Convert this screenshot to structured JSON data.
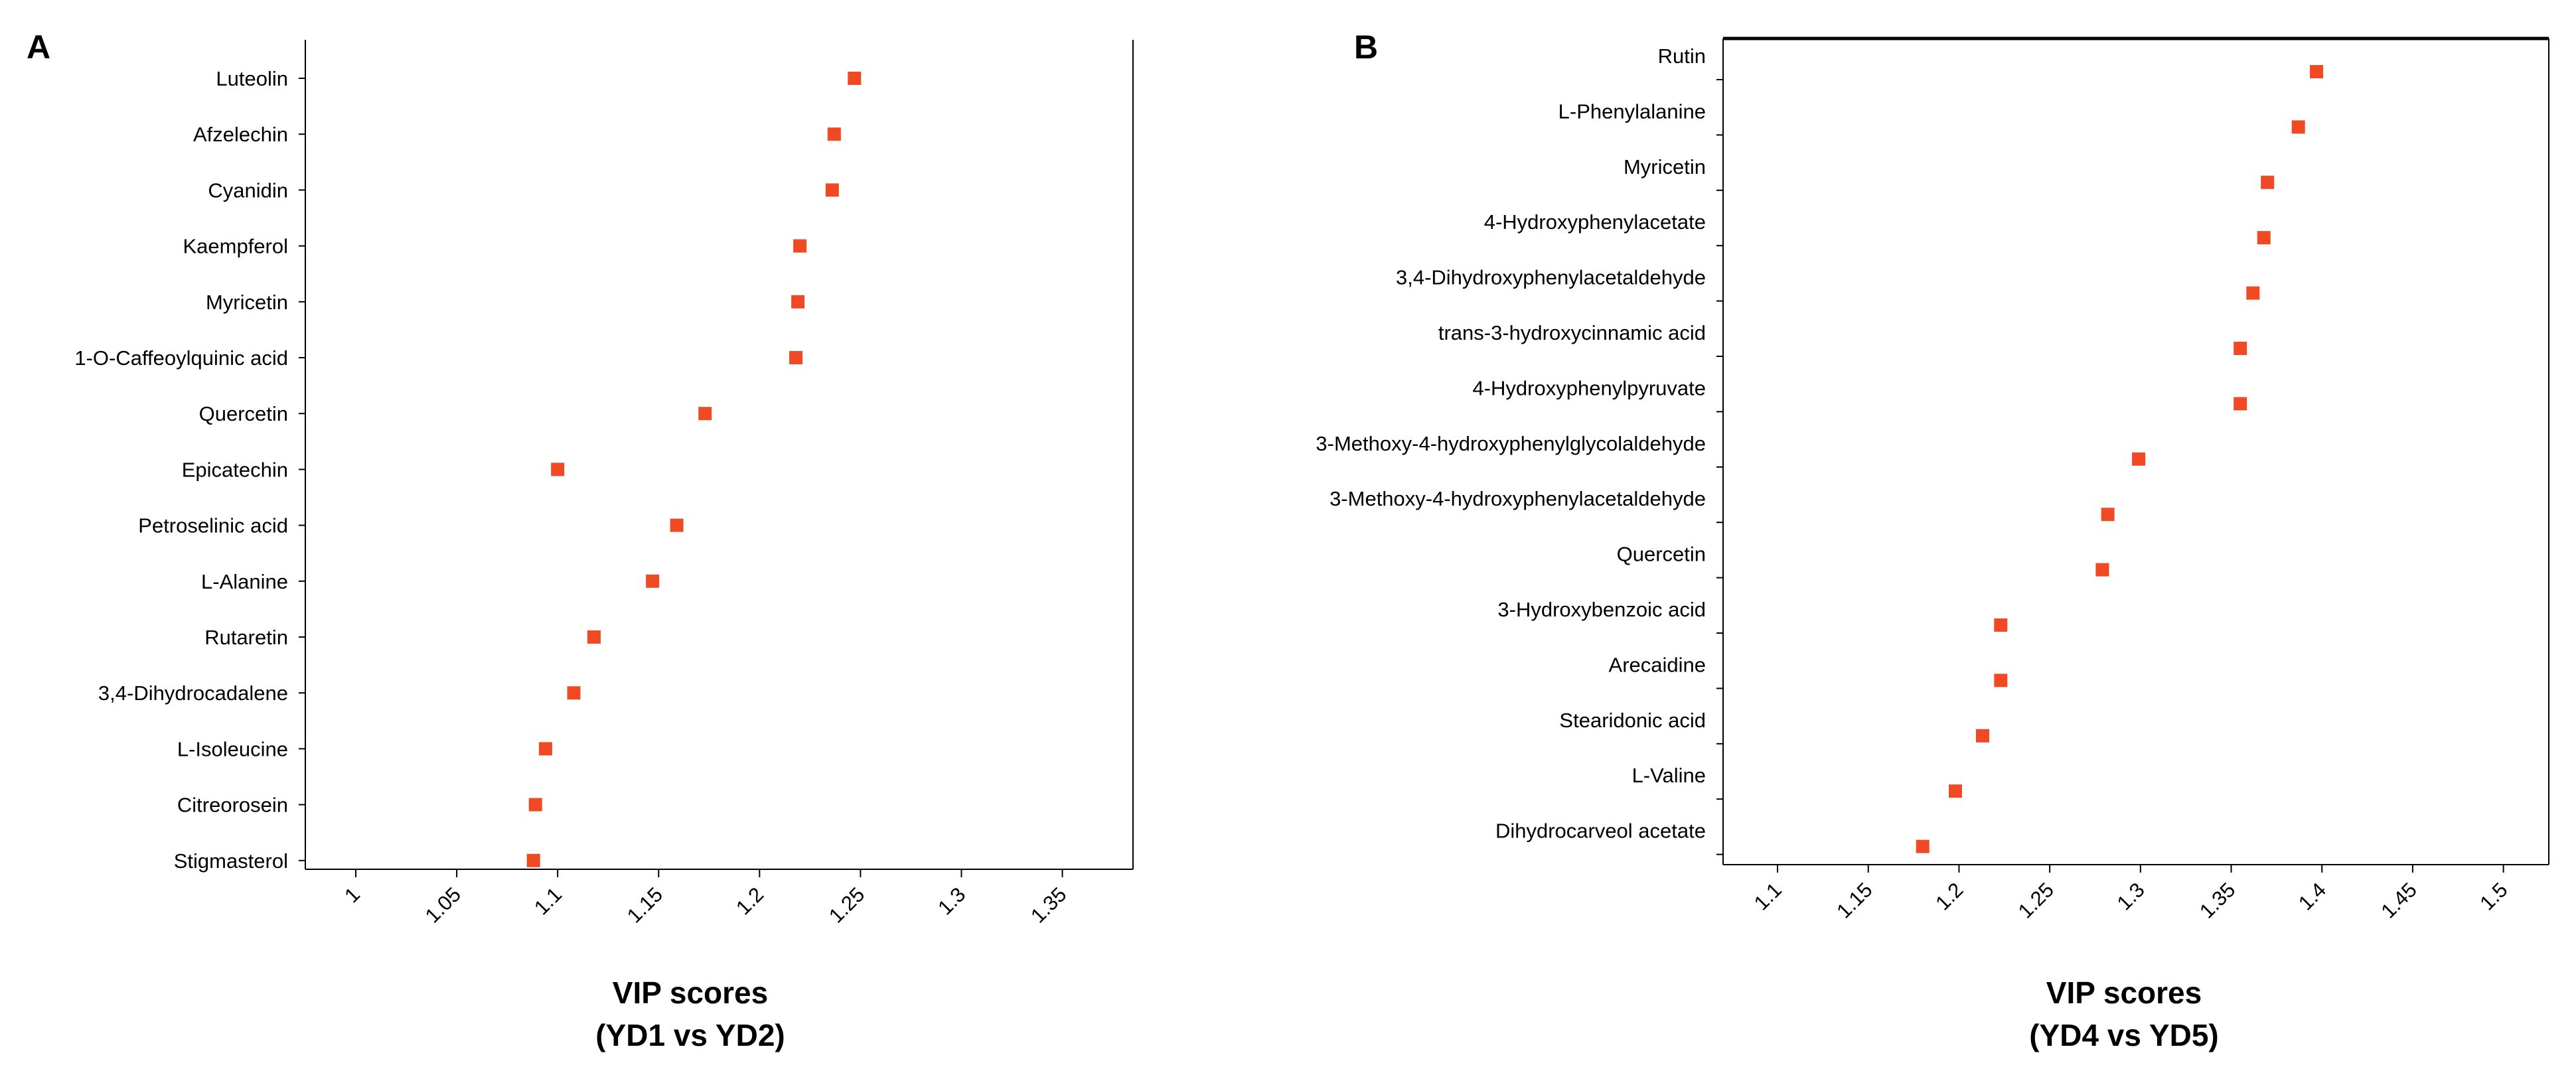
{
  "chart_data": [
    {
      "type": "scatter",
      "panel": "A",
      "xlabel": "VIP scores",
      "xlabel_sub": "(YD1 vs YD2)",
      "xlim": [
        0.975,
        1.385
      ],
      "xticks": [
        1,
        1.05,
        1.1,
        1.15,
        1.2,
        1.25,
        1.3,
        1.35
      ],
      "xtick_labels": [
        "1",
        "1.05",
        "1.1",
        "1.15",
        "1.2",
        "1.25",
        "1.3",
        "1.35"
      ],
      "marker_color": "#f04a24",
      "categories": [
        "Luteolin",
        "Afzelechin",
        "Cyanidin",
        "Kaempferol",
        "Myricetin",
        "1-O-Caffeoylquinic acid",
        "Quercetin",
        "Epicatechin",
        "Petroselinic acid",
        "L-Alanine",
        "Rutaretin",
        "3,4-Dihydrocadalene",
        "L-Isoleucine",
        "Citreorosein",
        "Stigmasterol"
      ],
      "values": [
        1.247,
        1.237,
        1.236,
        1.22,
        1.219,
        1.218,
        1.173,
        1.1,
        1.159,
        1.147,
        1.118,
        1.108,
        1.094,
        1.089,
        1.088
      ]
    },
    {
      "type": "scatter",
      "panel": "B",
      "xlabel": "VIP scores",
      "xlabel_sub": "(YD4 vs YD5)",
      "xlim": [
        1.07,
        1.525
      ],
      "xticks": [
        1.1,
        1.15,
        1.2,
        1.25,
        1.3,
        1.35,
        1.4,
        1.45,
        1.5
      ],
      "xtick_labels": [
        "1.1",
        "1.15",
        "1.2",
        "1.25",
        "1.3",
        "1.35",
        "1.4",
        "1.45",
        "1.5"
      ],
      "marker_color": "#f04a24",
      "categories": [
        "Rutin",
        "L-Phenylalanine",
        "Myricetin",
        "4-Hydroxyphenylacetate",
        "3,4-Dihydroxyphenylacetaldehyde",
        "trans-3-hydroxycinnamic acid",
        "4-Hydroxyphenylpyruvate",
        "3-Methoxy-4-hydroxyphenylglycolaldehyde",
        "3-Methoxy-4-hydroxyphenylacetaldehyde",
        "Quercetin",
        "3-Hydroxybenzoic acid",
        "Arecaidine",
        "Stearidonic acid",
        "L-Valine",
        "Dihydrocarveol acetate"
      ],
      "values": [
        1.397,
        1.387,
        1.37,
        1.368,
        1.362,
        1.355,
        1.355,
        1.299,
        1.282,
        1.279,
        1.223,
        1.223,
        1.213,
        1.198,
        1.18
      ]
    }
  ]
}
